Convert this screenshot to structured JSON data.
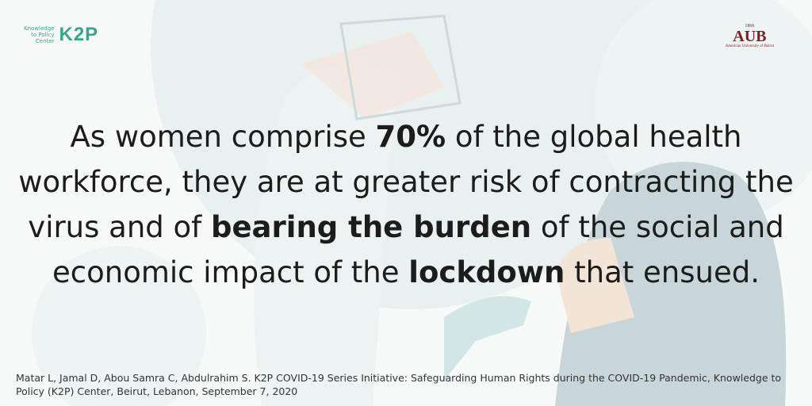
{
  "logos": {
    "k2p": {
      "caption": [
        "Knowledge",
        "to Policy",
        "Center"
      ],
      "mark": "K2P"
    },
    "aub": {
      "year": "1866",
      "mark": "AUB",
      "caption": "American University of Beirut"
    }
  },
  "quote": {
    "lines": [
      [
        {
          "text": "As women comprise ",
          "bold": false
        },
        {
          "text": "70%",
          "bold": true
        },
        {
          "text": " of the global health",
          "bold": false
        }
      ],
      [
        {
          "text": "workforce, they are at greater risk of contracting the",
          "bold": false
        }
      ],
      [
        {
          "text": "virus and of ",
          "bold": false
        },
        {
          "text": "bearing the burden",
          "bold": true
        },
        {
          "text": " of the social and",
          "bold": false
        }
      ],
      [
        {
          "text": "economic impact of the ",
          "bold": false
        },
        {
          "text": "lockdown",
          "bold": true
        },
        {
          "text": " that ensued.",
          "bold": false
        }
      ]
    ]
  },
  "citation": "Matar L, Jamal D, Abou Samra C, Abdulrahim S. K2P COVID-19 Series Initiative: Safeguarding Human Rights during the COVID-19 Pandemic, Knowledge to Policy (K2P) Center, Beirut, Lebanon, September 7, 2020"
}
